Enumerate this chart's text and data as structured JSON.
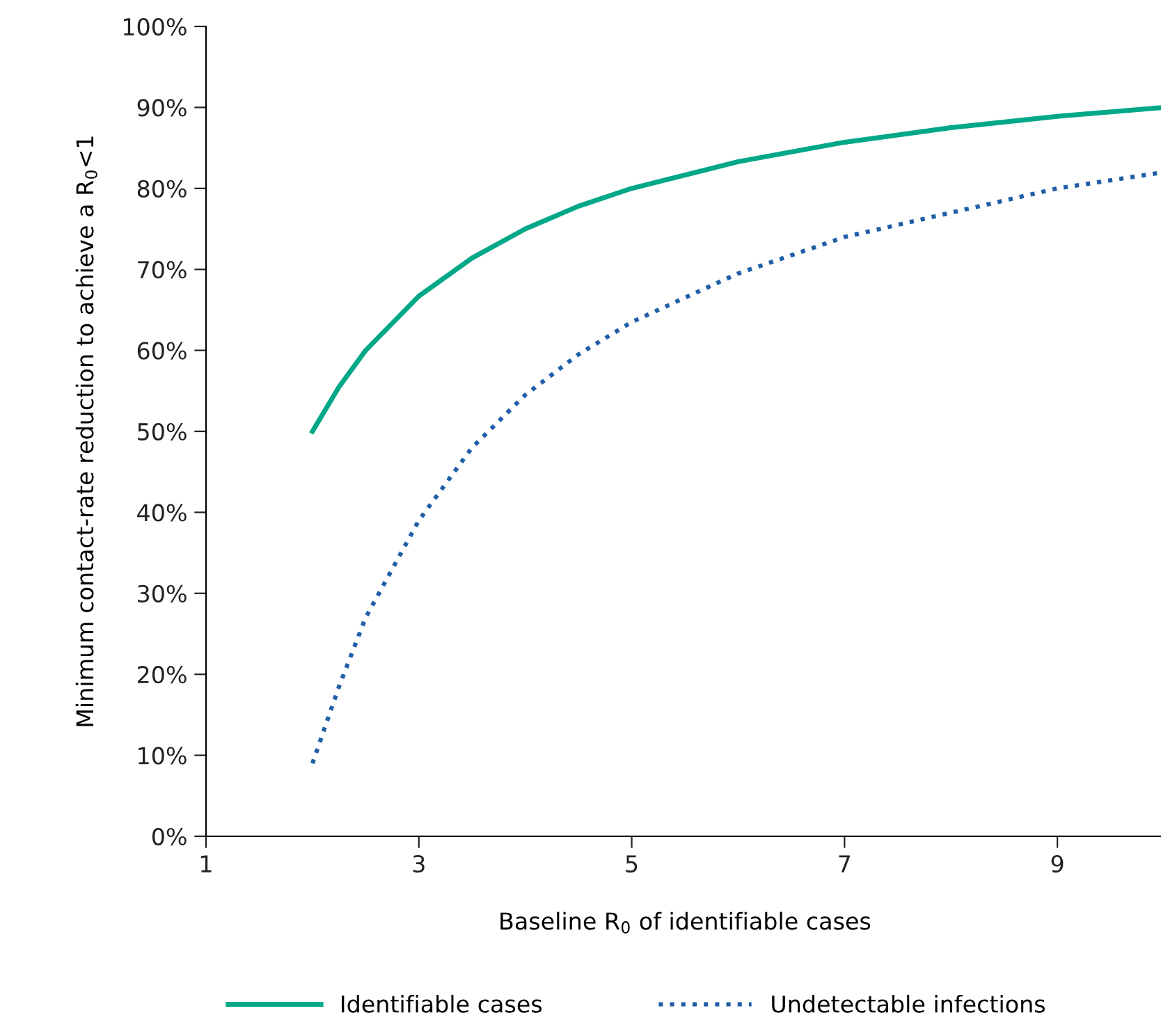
{
  "chart_data": {
    "type": "line",
    "xlabel": "Baseline R$_{0}$ of identifiable cases",
    "ylabel": "Minimum contact-rate reduction to achieve a R$_{0}$<1",
    "xlim": [
      1,
      10
    ],
    "xticks": [
      1,
      3,
      5,
      7,
      9
    ],
    "ylim": [
      0,
      100
    ],
    "yticks": [
      {
        "value": 0,
        "label": "0%"
      },
      {
        "value": 10,
        "label": "10%"
      },
      {
        "value": 20,
        "label": "20%"
      },
      {
        "value": 30,
        "label": "30%"
      },
      {
        "value": 40,
        "label": "40%"
      },
      {
        "value": 50,
        "label": "50%"
      },
      {
        "value": 60,
        "label": "60%"
      },
      {
        "value": 70,
        "label": "70%"
      },
      {
        "value": 80,
        "label": "80%"
      },
      {
        "value": 90,
        "label": "90%"
      },
      {
        "value": 100,
        "label": "100%"
      }
    ],
    "x": [
      2,
      2.25,
      2.5,
      3,
      3.5,
      4,
      4.5,
      5,
      6,
      7,
      8,
      9,
      10
    ],
    "series": [
      {
        "name": "Identifiable cases",
        "color": "#00a887",
        "line_style": "solid",
        "values": [
          50,
          55.5,
          60,
          66.7,
          71.4,
          75,
          77.8,
          80,
          83.3,
          85.7,
          87.5,
          88.9,
          90
        ]
      },
      {
        "name": "Undetectable infections",
        "color": "#1f5fa8",
        "line_style": "dotted",
        "values": [
          9,
          18.5,
          27,
          39,
          48,
          54.5,
          59.5,
          63.5,
          69.5,
          74,
          77,
          80,
          82
        ]
      }
    ],
    "grid": false,
    "legend": "bottom",
    "marker": "none"
  }
}
